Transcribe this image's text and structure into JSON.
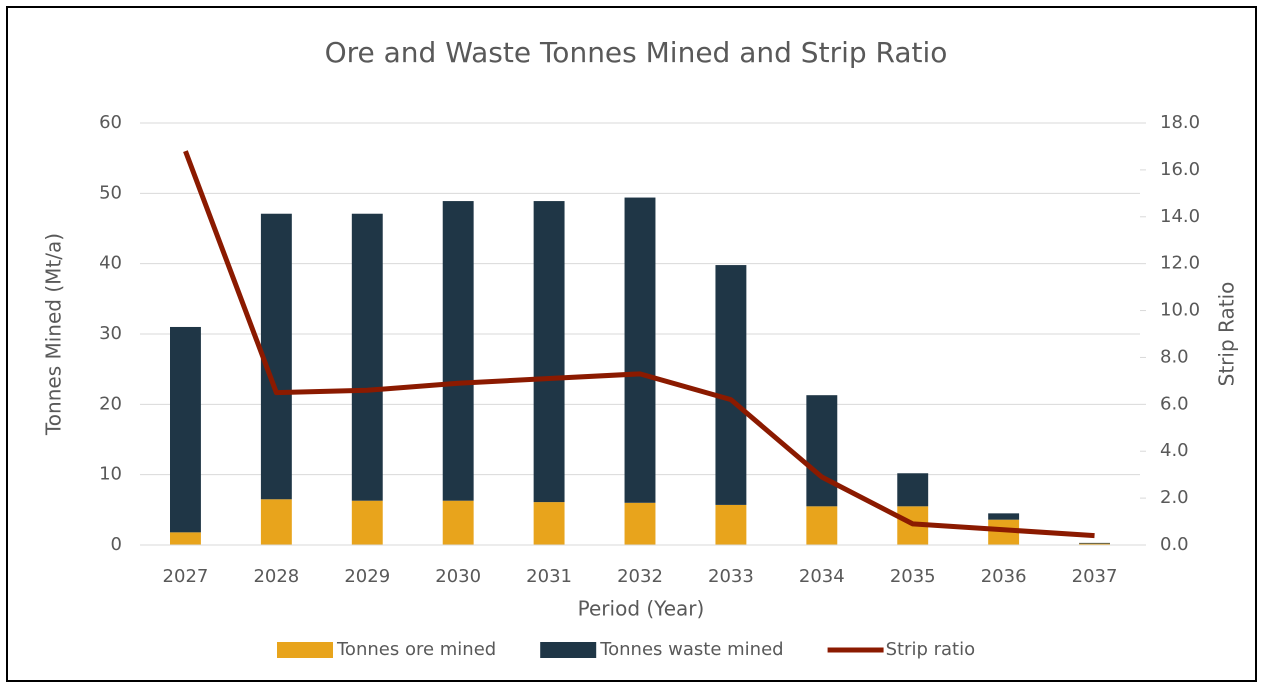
{
  "chart_data": {
    "type": "bar",
    "title": "Ore and Waste Tonnes Mined and Strip Ratio",
    "x_label": "Period (Year)",
    "y_label": "Tonnes Mined (Mt/a)",
    "y2_label": "Strip Ratio",
    "categories": [
      "2027",
      "2028",
      "2029",
      "2030",
      "2031",
      "2032",
      "2033",
      "2034",
      "2035",
      "2036",
      "2037"
    ],
    "stacked": true,
    "series": [
      {
        "name": "Tonnes ore mined",
        "type": "bar",
        "color": "#e8a41c",
        "values": [
          1.8,
          6.5,
          6.3,
          6.3,
          6.1,
          6.0,
          5.7,
          5.5,
          5.5,
          3.6,
          0.2
        ]
      },
      {
        "name": "Tonnes waste mined",
        "type": "bar",
        "color": "#1f3646",
        "values": [
          29.2,
          40.6,
          40.8,
          42.6,
          42.8,
          43.4,
          34.1,
          15.8,
          4.7,
          0.9,
          0.1
        ]
      },
      {
        "name": "Strip ratio",
        "type": "line",
        "axis": "y2",
        "color": "#8b1a00",
        "values": [
          16.8,
          6.5,
          6.6,
          6.9,
          7.1,
          7.3,
          6.2,
          2.9,
          0.9,
          0.65,
          0.4
        ]
      }
    ],
    "ylim": [
      0,
      60
    ],
    "yticks": [
      0,
      10,
      20,
      30,
      40,
      50,
      60
    ],
    "y2lim": [
      0,
      18
    ],
    "y2ticks": [
      {
        "value": 0,
        "label": "0.0"
      },
      {
        "value": 2,
        "label": "2.0"
      },
      {
        "value": 4,
        "label": "4.0"
      },
      {
        "value": 6,
        "label": "6.0"
      },
      {
        "value": 8,
        "label": "8.0"
      },
      {
        "value": 10,
        "label": "10.0"
      },
      {
        "value": 12,
        "label": "12.0"
      },
      {
        "value": 14,
        "label": "14.0"
      },
      {
        "value": 16,
        "label": "16.0"
      },
      {
        "value": 18,
        "label": "18.0"
      }
    ],
    "grid": true,
    "legend": "bottom"
  }
}
